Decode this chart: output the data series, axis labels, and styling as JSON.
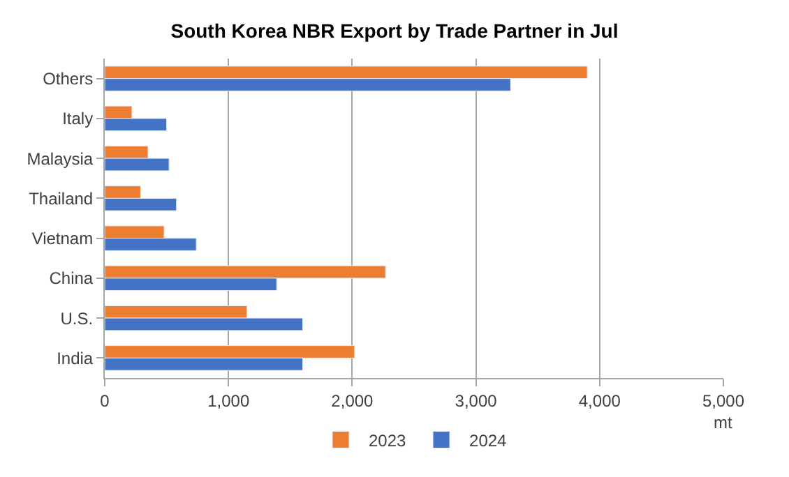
{
  "chart_data": {
    "type": "bar",
    "orientation": "horizontal",
    "title": "South Korea NBR Export by Trade Partner in Jul",
    "xlabel": "mt",
    "categories": [
      "Others",
      "Italy",
      "Malaysia",
      "Thailand",
      "Vietnam",
      "China",
      "U.S.",
      "India"
    ],
    "series": [
      {
        "name": "2023",
        "color": "#ed7d31",
        "values": [
          3900,
          220,
          350,
          290,
          480,
          2270,
          1150,
          2020
        ]
      },
      {
        "name": "2024",
        "color": "#4472c4",
        "values": [
          3280,
          500,
          520,
          580,
          740,
          1390,
          1600,
          1600
        ]
      }
    ],
    "xlim": [
      0,
      5000
    ],
    "xticks": [
      {
        "value": 0,
        "label": "0"
      },
      {
        "value": 1000,
        "label": "1,000"
      },
      {
        "value": 2000,
        "label": "2,000"
      },
      {
        "value": 3000,
        "label": "3,000"
      },
      {
        "value": 4000,
        "label": "4,000"
      },
      {
        "value": 5000,
        "label": "5,000"
      }
    ],
    "grid": "x",
    "legend": "bottom"
  }
}
